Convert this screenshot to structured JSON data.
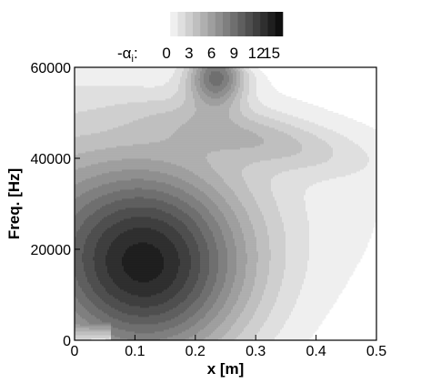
{
  "chart_data": {
    "type": "contour",
    "xlabel": "x [m]",
    "ylabel": "Freq. [Hz]",
    "xlim": [
      0,
      0.5
    ],
    "ylim": [
      0,
      60000
    ],
    "xticks": [
      "0",
      "0.1",
      "0.2",
      "0.3",
      "0.4",
      "0.5"
    ],
    "yticks": [
      "0",
      "20000",
      "40000",
      "60000"
    ],
    "legend": {
      "placement": "top",
      "label_prefix": "-α",
      "label_subscript": "i",
      "label_suffix": ":",
      "tick_labels": [
        "0",
        "3",
        "6",
        "9",
        "12",
        "15"
      ],
      "levels": [
        0,
        1,
        2,
        3,
        4,
        5,
        6,
        7,
        8,
        9,
        10,
        11,
        12,
        13,
        14,
        15
      ]
    },
    "colormap": [
      "#ffffff",
      "#000000"
    ],
    "features": [
      {
        "kind": "max",
        "x": 0.12,
        "y": 16000,
        "value": 12
      },
      {
        "kind": "max",
        "x": 0.235,
        "y": 57500,
        "value": 10
      },
      {
        "kind": "neutral-curve",
        "x_at_60000Hz": 0.5,
        "x_at_38000Hz": 0.5
      }
    ]
  }
}
